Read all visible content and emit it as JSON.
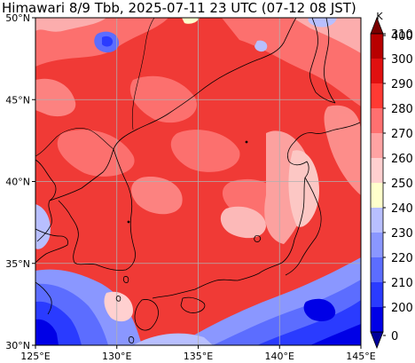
{
  "title": "Himawari 8/9 Tbb, 2025-07-11 23 UTC (07-12 08 JST)",
  "map": {
    "lon_range": [
      125,
      145
    ],
    "lat_range": [
      30,
      50
    ],
    "lon_ticks": [
      {
        "value": 125,
        "label": "125°E"
      },
      {
        "value": 130,
        "label": "130°E"
      },
      {
        "value": 135,
        "label": "135°E"
      },
      {
        "value": 140,
        "label": "140°E"
      },
      {
        "value": 145,
        "label": "145°E"
      }
    ],
    "lat_ticks": [
      {
        "value": 30,
        "label": "30°N"
      },
      {
        "value": 35,
        "label": "35°N"
      },
      {
        "value": 40,
        "label": "40°N"
      },
      {
        "value": 45,
        "label": "45°N"
      },
      {
        "value": 50,
        "label": "50°N"
      }
    ],
    "grid": true,
    "grid_color": "#b0b0b0",
    "coastline_color": "#000000",
    "dominant_color": "#f03a36"
  },
  "colorbar": {
    "unit": "K",
    "levels": [
      "0",
      "200",
      "210",
      "220",
      "230",
      "240",
      "250",
      "260",
      "270",
      "280",
      "290",
      "300",
      "310",
      "400"
    ],
    "colors": [
      "#00009a",
      "#0000e6",
      "#2a3bff",
      "#5c6dff",
      "#8a97ff",
      "#b8bfff",
      "#ffffcc",
      "#ffd0d0",
      "#ffa3a3",
      "#ff7070",
      "#ff3a33",
      "#e01010",
      "#b80000",
      "#7a0000"
    ]
  }
}
